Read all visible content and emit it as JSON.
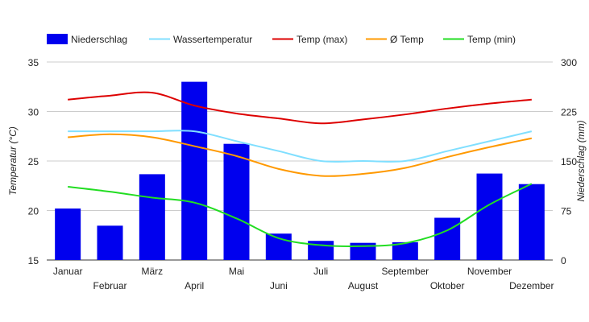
{
  "chart_data": {
    "type": "bar+line",
    "categories": [
      "Januar",
      "Februar",
      "März",
      "April",
      "Mai",
      "Juni",
      "Juli",
      "August",
      "September",
      "Oktober",
      "November",
      "Dezember"
    ],
    "ylabel_left": "Temperatur (°C)",
    "ylabel_right": "Niederschlag (mm)",
    "ylim_left": [
      15,
      35
    ],
    "yticks_left": [
      15,
      20,
      25,
      30,
      35
    ],
    "ylim_right": [
      0,
      300
    ],
    "yticks_right": [
      0,
      75,
      150,
      225,
      300
    ],
    "grid": true,
    "legend_position": "top",
    "bars": {
      "name": "Niederschlag",
      "axis": "right",
      "color": "#0000ee",
      "values": [
        78,
        52,
        130,
        270,
        176,
        40,
        29,
        26,
        27,
        64,
        131,
        115
      ]
    },
    "series": [
      {
        "name": "Wassertemperatur",
        "axis": "left",
        "color": "#80dfff",
        "values": [
          28.0,
          28.0,
          28.0,
          28.0,
          27.0,
          26.0,
          25.0,
          25.0,
          25.0,
          26.0,
          27.0,
          28.0
        ]
      },
      {
        "name": "Temp (max)",
        "axis": "left",
        "color": "#dd0000",
        "values": [
          31.2,
          31.6,
          31.9,
          30.6,
          29.8,
          29.3,
          28.8,
          29.2,
          29.7,
          30.3,
          30.8,
          31.2
        ]
      },
      {
        "name": "Ø Temp",
        "axis": "left",
        "color": "#ff9900",
        "values": [
          27.4,
          27.7,
          27.4,
          26.5,
          25.5,
          24.2,
          23.5,
          23.7,
          24.3,
          25.4,
          26.4,
          27.3
        ]
      },
      {
        "name": "Temp (min)",
        "axis": "left",
        "color": "#22dd22",
        "values": [
          22.4,
          21.9,
          21.3,
          20.8,
          19.2,
          17.2,
          16.5,
          16.4,
          16.7,
          18.0,
          20.6,
          22.7
        ]
      }
    ]
  }
}
